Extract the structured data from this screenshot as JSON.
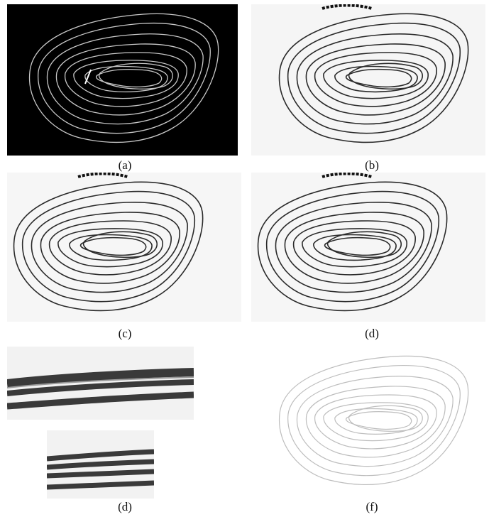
{
  "captions": {
    "a": "(a)",
    "b": "(b)",
    "c": "(c)",
    "d1": "(d)",
    "d2": "(d)",
    "f": "(f)"
  },
  "colors": {
    "panel_a_bg": "#000000",
    "panel_a_line": "#c8c8c8",
    "dark_line": "#2a2a2a",
    "light_line": "#bdbdbd",
    "zoom_band": "#3a3a3a"
  }
}
